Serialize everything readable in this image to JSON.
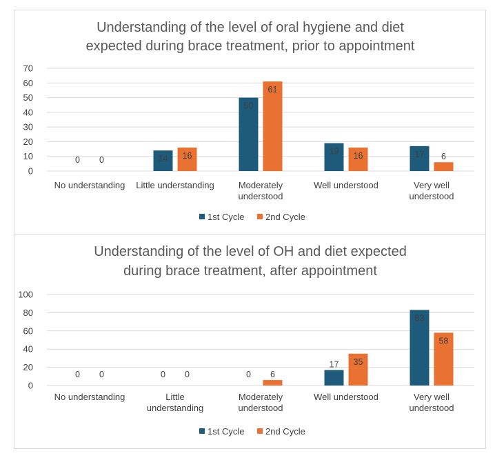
{
  "colors": {
    "series1": "#1e5a7a",
    "series2": "#e97132"
  },
  "chart_data": [
    {
      "type": "bar",
      "title_lines": [
        "Understanding of the level of oral hygiene and diet",
        "expected during brace treatment, prior to appointment"
      ],
      "categories": [
        "No understanding",
        "Little understanding",
        "Moderately understood",
        "Well understood",
        "Very well understood"
      ],
      "category_label_lines": [
        [
          "No understanding"
        ],
        [
          "Little understanding"
        ],
        [
          "Moderately",
          "understood"
        ],
        [
          "Well understood"
        ],
        [
          "Very well",
          "understood"
        ]
      ],
      "series": [
        {
          "name": "1st Cycle",
          "values": [
            0,
            14,
            50,
            19,
            17
          ]
        },
        {
          "name": "2nd Cycle",
          "values": [
            0,
            16,
            61,
            16,
            6
          ]
        }
      ],
      "yticks": [
        0,
        10,
        20,
        30,
        40,
        50,
        60,
        70
      ],
      "ylim": [
        0,
        70
      ],
      "xlabel": "",
      "ylabel": "",
      "legend_position": "bottom",
      "grid": true
    },
    {
      "type": "bar",
      "title_lines": [
        "Understanding of the level of OH and diet expected",
        "during brace treatment, after appointment"
      ],
      "categories": [
        "No understanding",
        "Little understanding",
        "Moderately understood",
        "Well understood",
        "Very well understood"
      ],
      "category_label_lines": [
        [
          "No understanding"
        ],
        [
          "Little",
          "understanding"
        ],
        [
          "Moderately",
          "understood"
        ],
        [
          "Well understood"
        ],
        [
          "Very well",
          "understood"
        ]
      ],
      "series": [
        {
          "name": "1st Cycle",
          "values": [
            0,
            0,
            0,
            17,
            83
          ]
        },
        {
          "name": "2nd Cycle",
          "values": [
            0,
            0,
            6,
            35,
            58
          ]
        }
      ],
      "yticks": [
        0,
        20,
        40,
        60,
        80,
        100
      ],
      "ylim": [
        0,
        100
      ],
      "xlabel": "",
      "ylabel": "",
      "legend_position": "bottom",
      "grid": true
    }
  ]
}
